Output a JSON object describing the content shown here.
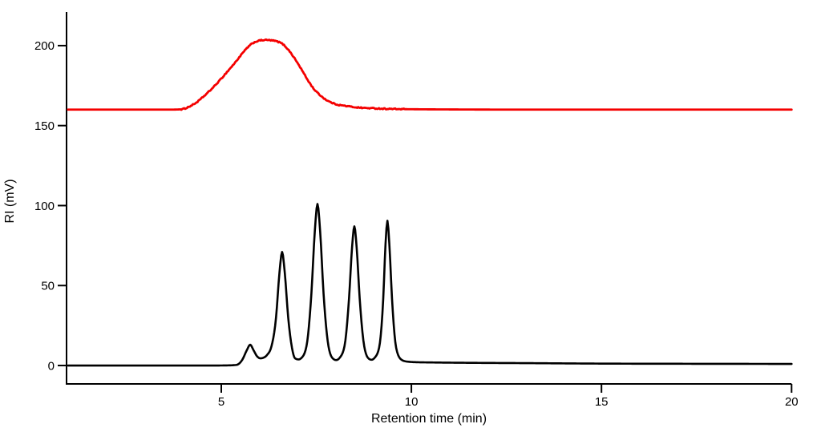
{
  "chart_data": {
    "type": "line",
    "title": "",
    "xlabel": "Retention time (min)",
    "ylabel": "RI (mV)",
    "x_ticks": [
      5,
      10,
      15,
      20
    ],
    "y_ticks": [
      0,
      50,
      100,
      150,
      200
    ],
    "x_range": [
      0.93,
      20
    ],
    "y_range": [
      -11.5,
      221
    ],
    "grid": false,
    "legend": null,
    "background_color": "#ffffff",
    "axis_color": "#000000",
    "series": [
      {
        "name": "broad-polymer-trace",
        "color": "#f40000",
        "line_width": 2.8,
        "baseline_mV": 160,
        "plateau_mV": 203.5,
        "peak_onset_min": 4.0,
        "peak_end_min": 9.6,
        "noise": {
          "amp": 0.35,
          "t_start": 3.95,
          "t_end": 9.8
        },
        "points": [
          [
            0.97,
            160
          ],
          [
            1.6,
            160
          ],
          [
            2.4,
            160
          ],
          [
            3.2,
            160
          ],
          [
            3.7,
            160
          ],
          [
            3.95,
            160.2
          ],
          [
            4.15,
            161.8
          ],
          [
            4.35,
            164.5
          ],
          [
            4.55,
            168.5
          ],
          [
            4.75,
            173
          ],
          [
            4.95,
            178
          ],
          [
            5.15,
            183.5
          ],
          [
            5.35,
            189
          ],
          [
            5.55,
            195
          ],
          [
            5.7,
            199
          ],
          [
            5.85,
            201.8
          ],
          [
            6.0,
            203.1
          ],
          [
            6.15,
            203.5
          ],
          [
            6.3,
            203.3
          ],
          [
            6.45,
            202.7
          ],
          [
            6.6,
            201.2
          ],
          [
            6.75,
            197.8
          ],
          [
            6.9,
            193
          ],
          [
            7.1,
            185.5
          ],
          [
            7.3,
            177.5
          ],
          [
            7.45,
            172.5
          ],
          [
            7.6,
            169
          ],
          [
            7.8,
            165.5
          ],
          [
            8.0,
            163.5
          ],
          [
            8.3,
            162.2
          ],
          [
            8.6,
            161.3
          ],
          [
            9.0,
            160.8
          ],
          [
            9.5,
            160.4
          ],
          [
            10.2,
            160.2
          ],
          [
            11,
            160.1
          ],
          [
            12.5,
            160
          ],
          [
            14,
            160
          ],
          [
            16,
            160
          ],
          [
            18,
            160
          ],
          [
            20,
            160
          ]
        ]
      },
      {
        "name": "oligomer-peaks-trace",
        "color": "#000000",
        "line_width": 2.6,
        "baseline_mV": 0,
        "noise": {
          "amp": 0,
          "t_start": 0,
          "t_end": 0
        },
        "peaks": [
          {
            "t_min": 5.76,
            "height_mV": 13
          },
          {
            "t_min": 6.6,
            "height_mV": 71
          },
          {
            "t_min": 7.53,
            "height_mV": 101
          },
          {
            "t_min": 8.5,
            "height_mV": 87
          },
          {
            "t_min": 9.37,
            "height_mV": 90.5
          }
        ],
        "points": [
          [
            0.97,
            0
          ],
          [
            2,
            0
          ],
          [
            3,
            0
          ],
          [
            4,
            0
          ],
          [
            4.8,
            0
          ],
          [
            5.2,
            0.1
          ],
          [
            5.4,
            0.4
          ],
          [
            5.55,
            3.5
          ],
          [
            5.67,
            9.5
          ],
          [
            5.76,
            13
          ],
          [
            5.85,
            9.5
          ],
          [
            5.94,
            5.8
          ],
          [
            6.03,
            4.5
          ],
          [
            6.1,
            4.8
          ],
          [
            6.2,
            6.5
          ],
          [
            6.32,
            12
          ],
          [
            6.44,
            30
          ],
          [
            6.53,
            58
          ],
          [
            6.6,
            71
          ],
          [
            6.67,
            58
          ],
          [
            6.76,
            30
          ],
          [
            6.86,
            11
          ],
          [
            6.94,
            4.5
          ],
          [
            7.03,
            3.8
          ],
          [
            7.12,
            5
          ],
          [
            7.24,
            12
          ],
          [
            7.37,
            45
          ],
          [
            7.46,
            84
          ],
          [
            7.53,
            101
          ],
          [
            7.6,
            84
          ],
          [
            7.69,
            45
          ],
          [
            7.82,
            12
          ],
          [
            7.93,
            4.5
          ],
          [
            8.02,
            3.4
          ],
          [
            8.12,
            5
          ],
          [
            8.24,
            12
          ],
          [
            8.36,
            42
          ],
          [
            8.44,
            74
          ],
          [
            8.5,
            87
          ],
          [
            8.56,
            74
          ],
          [
            8.64,
            42
          ],
          [
            8.76,
            12
          ],
          [
            8.87,
            4.5
          ],
          [
            8.95,
            3.6
          ],
          [
            9.04,
            5
          ],
          [
            9.15,
            11
          ],
          [
            9.26,
            42
          ],
          [
            9.32,
            76
          ],
          [
            9.37,
            90.5
          ],
          [
            9.42,
            76
          ],
          [
            9.49,
            42
          ],
          [
            9.6,
            11
          ],
          [
            9.72,
            4
          ],
          [
            9.85,
            2.6
          ],
          [
            10.1,
            2.1
          ],
          [
            10.6,
            1.9
          ],
          [
            11.5,
            1.7
          ],
          [
            13,
            1.5
          ],
          [
            15,
            1.2
          ],
          [
            17,
            1.1
          ],
          [
            20,
            1
          ]
        ]
      }
    ]
  }
}
